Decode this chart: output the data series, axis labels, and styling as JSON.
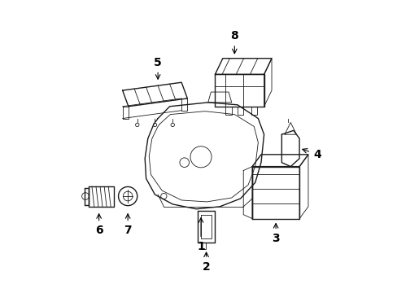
{
  "background_color": "#ffffff",
  "line_color": "#1a1a1a",
  "fig_width": 4.89,
  "fig_height": 3.6,
  "dpi": 100,
  "label_fontsize": 10,
  "label_fontweight": "bold",
  "lw": 1.0,
  "lw_thin": 0.6
}
